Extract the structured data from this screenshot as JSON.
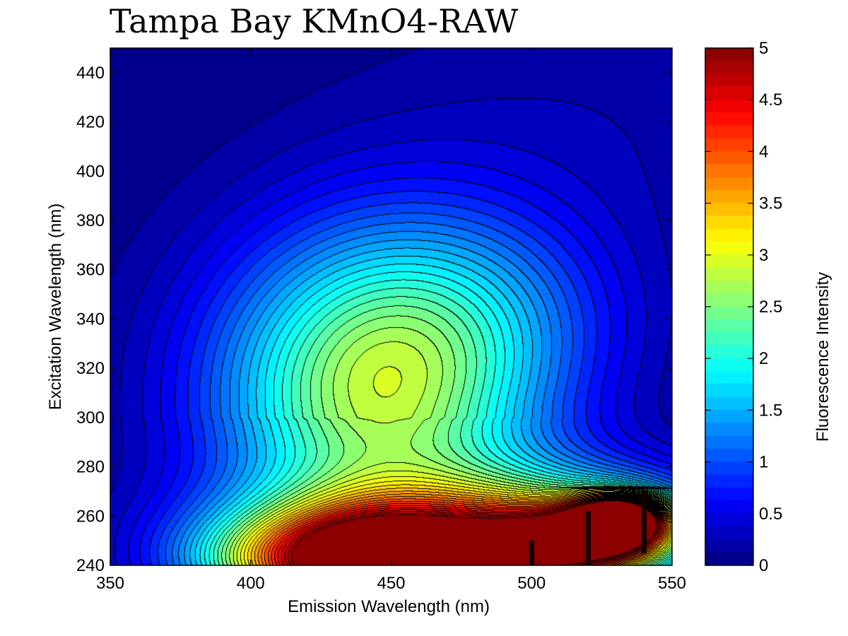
{
  "chart_data": {
    "type": "heatmap",
    "subtype": "filled-contour",
    "title": "Tampa Bay KMnO4-RAW",
    "xlabel": "Emission Wavelength (nm)",
    "ylabel": "Excitation Wavelength (nm)",
    "colorbar_label": "Fluorescence Intensity",
    "xlim": [
      350,
      550
    ],
    "ylim": [
      240,
      450
    ],
    "clim": [
      0,
      5
    ],
    "xticks": [
      350,
      400,
      450,
      500,
      550
    ],
    "yticks": [
      240,
      260,
      280,
      300,
      320,
      340,
      360,
      380,
      400,
      420,
      440
    ],
    "cticks": [
      0,
      0.5,
      1,
      1.5,
      2,
      2.5,
      3,
      3.5,
      4,
      4.5,
      5
    ],
    "colormap": "jet",
    "contour_levels": 40,
    "grid": false,
    "peaks": [
      {
        "emission": 445,
        "excitation": 245,
        "intensity": 5
      },
      {
        "emission": 445,
        "excitation": 310,
        "intensity": 2.8
      }
    ],
    "scatter_ridges": [
      {
        "emission": 500,
        "excitation_range": [
          240,
          250
        ]
      },
      {
        "emission": 520,
        "excitation_range": [
          240,
          262
        ]
      },
      {
        "emission": 540,
        "excitation_range": [
          245,
          270
        ]
      }
    ]
  }
}
